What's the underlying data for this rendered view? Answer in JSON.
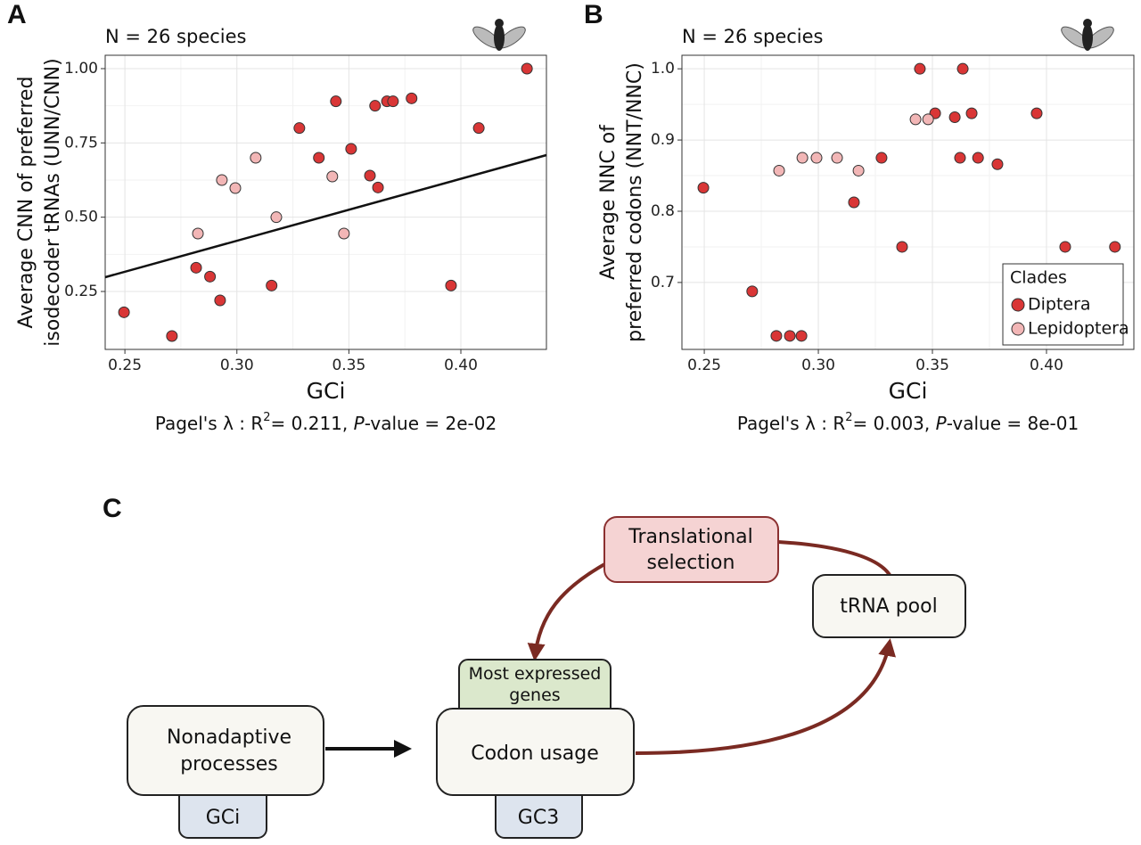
{
  "chart_data": [
    {
      "panel": "A",
      "type": "scatter",
      "subtitle": "N = 26 species",
      "xlabel": "GCi",
      "ylabel": [
        "Average CNN of preferred",
        "isodecoder tRNAs (UNN/CNN)"
      ],
      "annotation": {
        "lead": "Pagel's λ : R",
        "sup": "2",
        "mid": "= 0.211, ",
        "italic": "P",
        "tail": "-value = 2e-02"
      },
      "xlim": [
        0.2412,
        0.4382
      ],
      "ylim": [
        0.055,
        1.045
      ],
      "xticks": [
        0.25,
        {
          "value": 0.3,
          "label": "0.30"
        },
        0.35,
        {
          "value": 0.4,
          "label": "0.40"
        }
      ],
      "yticks": [
        0.25,
        {
          "value": 0.5,
          "label": "0.50"
        },
        0.75,
        {
          "value": 1.0,
          "label": "1.00"
        }
      ],
      "grid": true,
      "legend": false,
      "fit": {
        "x": [
          0.2412,
          0.4382
        ],
        "y": [
          0.298,
          0.709
        ],
        "color": "#111111"
      },
      "series": [
        {
          "name": "Diptera",
          "color": "#d93636",
          "x": [
            0.2496,
            0.271,
            0.2818,
            0.288,
            0.2925,
            0.3155,
            0.3279,
            0.3366,
            0.3442,
            0.351,
            0.3594,
            0.3617,
            0.363,
            0.367,
            0.3697,
            0.378,
            0.3956,
            0.408,
            0.4295
          ],
          "values": [
            0.18,
            0.1,
            0.33,
            0.3,
            0.22,
            0.27,
            0.8,
            0.7,
            0.89,
            0.73,
            0.64,
            0.875,
            0.6,
            0.89,
            0.89,
            0.9,
            0.27,
            0.8,
            1.0
          ]
        },
        {
          "name": "Lepidoptera",
          "color": "#f2b6b6",
          "x": [
            0.2826,
            0.2933,
            0.2993,
            0.3084,
            0.3176,
            0.3426,
            0.3478
          ],
          "values": [
            0.445,
            0.625,
            0.598,
            0.7,
            0.5,
            0.637,
            0.445
          ]
        }
      ]
    },
    {
      "panel": "B",
      "type": "scatter",
      "subtitle": "N = 26 species",
      "xlabel": "GCi",
      "ylabel": [
        "Average NNC of",
        "preferred codons (NNT/NNC)"
      ],
      "annotation": {
        "lead": "Pagel's λ : R",
        "sup": "2",
        "mid": "= 0.003, ",
        "italic": "P",
        "tail": "-value = 8e-01"
      },
      "xlim": [
        0.2402,
        0.4383
      ],
      "ylim": [
        0.606,
        1.019
      ],
      "xticks": [
        0.25,
        {
          "value": 0.3,
          "label": "0.30"
        },
        0.35,
        {
          "value": 0.4,
          "label": "0.40"
        }
      ],
      "yticks": [
        0.7,
        0.8,
        0.9,
        {
          "value": 1.0,
          "label": "1.0"
        }
      ],
      "grid": true,
      "legend": {
        "title": "Clades",
        "position": "bottom-right"
      },
      "series": [
        {
          "name": "Diptera",
          "color": "#d93636",
          "x": [
            0.2496,
            0.271,
            0.2816,
            0.2875,
            0.2926,
            0.3156,
            0.3277,
            0.3367,
            0.3445,
            0.3512,
            0.3598,
            0.3621,
            0.3633,
            0.3672,
            0.37,
            0.3785,
            0.3957,
            0.4082,
            0.43
          ],
          "values": [
            0.833,
            0.6875,
            0.625,
            0.625,
            0.625,
            0.8125,
            0.875,
            0.75,
            1.0,
            0.9375,
            0.932,
            0.875,
            1.0,
            0.9375,
            0.875,
            0.866,
            0.9375,
            0.75,
            0.75
          ]
        },
        {
          "name": "Lepidoptera",
          "color": "#f2b6b6",
          "x": [
            0.2828,
            0.293,
            0.2992,
            0.3082,
            0.3176,
            0.3426,
            0.3481
          ],
          "values": [
            0.857,
            0.875,
            0.875,
            0.875,
            0.857,
            0.929,
            0.929
          ]
        }
      ]
    }
  ],
  "diagram": {
    "panel": "C",
    "nodes": [
      {
        "lines": [
          "Translational",
          "selection"
        ]
      },
      {
        "lines": [
          "tRNA pool"
        ]
      },
      {
        "lines": [
          "Most expressed",
          "genes"
        ]
      },
      {
        "lines": [
          "Codon usage"
        ]
      },
      {
        "lines": [
          "GC3"
        ]
      },
      {
        "lines": [
          "Nonadaptive",
          "processes"
        ]
      },
      {
        "lines": [
          "GCi"
        ]
      }
    ]
  }
}
